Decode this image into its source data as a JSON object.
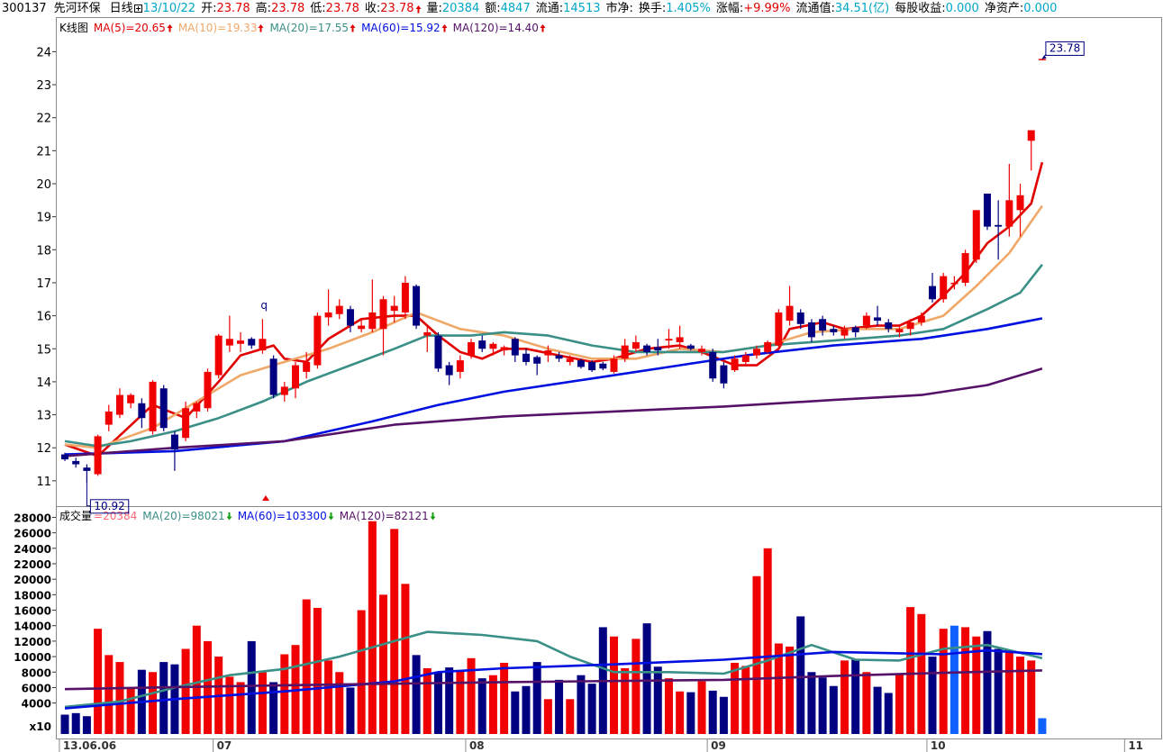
{
  "header": {
    "code": "300137",
    "name": "先河环保",
    "period": "日线",
    "date": "13/10/22",
    "fields": [
      {
        "label": "开:",
        "value": "23.78",
        "color": "#e00000"
      },
      {
        "label": "高:",
        "value": "23.78",
        "color": "#e00000"
      },
      {
        "label": "低:",
        "value": "23.78",
        "color": "#e00000"
      },
      {
        "label": "收:",
        "value": "23.78",
        "color": "#e00000",
        "arrow": "up"
      },
      {
        "label": "量:",
        "value": "20384",
        "color": "#00a6c8"
      },
      {
        "label": "额:",
        "value": "4847",
        "color": "#00a6c8"
      },
      {
        "label": "流通:",
        "value": "14513",
        "color": "#00a6c8"
      },
      {
        "label": "市净:"
      },
      {
        "label": "换手:",
        "value": "1.405%",
        "color": "#00a6c8"
      },
      {
        "label": "涨幅:",
        "value": "+9.99%",
        "color": "#e00000"
      },
      {
        "label": "流通值:",
        "value": "34.51(亿)",
        "color": "#00a6c8"
      },
      {
        "label": "每股收益:",
        "value": "0.000",
        "color": "#00a6c8"
      },
      {
        "label": "净资产:",
        "value": "0.000",
        "color": "#00a6c8"
      }
    ]
  },
  "chart_data": [
    {
      "type": "candlestick",
      "title": "K线图",
      "up_color": "#f00000",
      "down_color": "#000080",
      "flat_color": "#1060ff",
      "xlim": [
        -0.74,
        100
      ],
      "ylim": [
        10.26,
        25.02
      ],
      "yticks": [
        11,
        12,
        13,
        14,
        15,
        16,
        17,
        18,
        19,
        20,
        21,
        22,
        23,
        24
      ],
      "open": [
        11.8,
        11.6,
        11.4,
        11.2,
        12.7,
        13.0,
        13.35,
        13.35,
        12.5,
        13.8,
        12.4,
        12.3,
        13.1,
        13.2,
        14.2,
        15.1,
        15.15,
        15.3,
        14.95,
        14.7,
        13.6,
        13.8,
        14.3,
        14.5,
        15.95,
        16.05,
        16.2,
        15.6,
        15.6,
        15.6,
        16.15,
        16.1,
        16.9,
        15.4,
        15.4,
        14.5,
        14.3,
        14.8,
        15.25,
        15.0,
        14.95,
        15.3,
        14.85,
        14.75,
        14.8,
        14.8,
        14.6,
        14.65,
        14.6,
        14.55,
        14.3,
        14.7,
        15.0,
        15.1,
        15.05,
        15.25,
        15.2,
        15.1,
        14.9,
        14.9,
        14.5,
        14.35,
        14.6,
        14.8,
        14.9,
        15.1,
        15.85,
        16.1,
        15.8,
        15.9,
        15.6,
        15.4,
        15.65,
        15.7,
        15.95,
        15.8,
        15.5,
        15.6,
        15.8,
        16.9,
        16.5,
        17.0,
        17.0,
        17.7,
        19.7,
        18.75,
        18.7,
        19.2,
        21.3,
        23.78
      ],
      "high": [
        11.85,
        11.7,
        11.5,
        12.4,
        13.3,
        13.8,
        13.65,
        13.5,
        14.05,
        13.9,
        12.5,
        13.4,
        13.4,
        14.4,
        15.45,
        16.0,
        15.5,
        15.35,
        15.9,
        14.8,
        14.0,
        14.6,
        14.9,
        16.1,
        16.8,
        16.5,
        16.3,
        15.9,
        17.1,
        16.6,
        16.6,
        17.2,
        16.95,
        15.7,
        15.5,
        14.6,
        14.8,
        15.3,
        15.4,
        15.2,
        15.1,
        15.35,
        15.0,
        14.8,
        15.1,
        14.9,
        14.8,
        14.7,
        14.65,
        14.6,
        14.8,
        15.3,
        15.4,
        15.15,
        15.3,
        15.6,
        15.7,
        15.15,
        15.1,
        15.0,
        14.6,
        14.8,
        14.9,
        15.1,
        15.25,
        16.2,
        16.9,
        16.2,
        15.9,
        16.0,
        15.7,
        15.7,
        15.7,
        16.1,
        16.3,
        15.9,
        15.7,
        15.9,
        16.1,
        17.3,
        17.3,
        17.2,
        18.0,
        19.2,
        19.7,
        19.5,
        20.6,
        20.0,
        21.62,
        23.78
      ],
      "low": [
        11.6,
        11.4,
        10.92,
        11.15,
        12.5,
        12.9,
        13.2,
        12.6,
        12.4,
        12.5,
        11.3,
        12.2,
        12.9,
        13.1,
        14.1,
        14.9,
        14.9,
        15.0,
        14.85,
        13.5,
        13.4,
        13.5,
        14.1,
        14.4,
        15.7,
        15.9,
        15.5,
        15.5,
        15.5,
        14.8,
        15.8,
        15.9,
        15.6,
        14.9,
        14.3,
        13.9,
        14.1,
        14.7,
        14.9,
        14.8,
        14.8,
        14.6,
        14.5,
        14.2,
        14.6,
        14.6,
        14.5,
        14.4,
        14.3,
        14.35,
        14.25,
        14.6,
        14.9,
        14.8,
        14.8,
        15.0,
        15.0,
        14.95,
        14.8,
        14.0,
        13.8,
        14.3,
        14.5,
        14.7,
        14.85,
        15.0,
        15.7,
        15.6,
        15.2,
        15.4,
        15.4,
        15.3,
        15.35,
        15.6,
        15.7,
        15.5,
        15.35,
        15.4,
        15.7,
        16.4,
        16.4,
        16.8,
        16.9,
        17.6,
        18.6,
        17.7,
        18.4,
        18.4,
        20.4,
        23.78
      ],
      "close": [
        11.65,
        11.5,
        11.3,
        12.35,
        13.1,
        13.6,
        13.6,
        12.9,
        14.0,
        12.6,
        11.95,
        13.2,
        13.35,
        14.3,
        15.4,
        15.3,
        15.25,
        15.1,
        15.3,
        13.6,
        13.85,
        14.5,
        14.6,
        16.0,
        16.1,
        16.3,
        15.7,
        15.7,
        16.1,
        16.5,
        16.3,
        17.0,
        15.7,
        15.5,
        14.4,
        14.2,
        14.65,
        15.2,
        15.0,
        15.15,
        15.05,
        14.8,
        14.6,
        14.55,
        14.95,
        14.7,
        14.7,
        14.45,
        14.35,
        14.4,
        14.7,
        15.1,
        15.2,
        14.9,
        14.95,
        15.3,
        15.35,
        15.0,
        15.0,
        14.1,
        13.95,
        14.7,
        14.8,
        15.0,
        15.2,
        16.1,
        16.3,
        15.75,
        15.35,
        15.55,
        15.5,
        15.6,
        15.5,
        16.0,
        15.85,
        15.6,
        15.6,
        15.8,
        16.0,
        16.5,
        17.2,
        17.0,
        17.9,
        19.2,
        18.7,
        18.7,
        19.5,
        19.65,
        21.62,
        23.78
      ],
      "series": [
        {
          "name": "MA(5)=20.65",
          "color": "#e00000",
          "trend": "up",
          "x": [
            0,
            3,
            8,
            11,
            14,
            16,
            19,
            20,
            22,
            24,
            27,
            30,
            32,
            34,
            36,
            38,
            40,
            42,
            45,
            48,
            50,
            53,
            56,
            58,
            61,
            63,
            65,
            66,
            69,
            71,
            74,
            76,
            78,
            80,
            82,
            84,
            86,
            88,
            89
          ],
          "values": [
            12.1,
            11.75,
            13.3,
            12.9,
            14.0,
            14.8,
            15.1,
            14.7,
            14.6,
            15.3,
            15.9,
            16.0,
            16.0,
            15.4,
            14.9,
            14.7,
            15.0,
            15.0,
            14.8,
            14.6,
            14.7,
            15.0,
            15.1,
            14.9,
            14.5,
            14.5,
            15.0,
            15.6,
            15.8,
            15.6,
            15.7,
            15.7,
            16.0,
            16.6,
            17.3,
            18.2,
            18.7,
            19.4,
            20.65
          ]
        },
        {
          "name": "MA(10)=19.33",
          "color": "#f0a868",
          "trend": "up",
          "x": [
            0,
            3,
            8,
            12,
            16,
            20,
            24,
            28,
            32,
            36,
            40,
            44,
            48,
            52,
            56,
            60,
            64,
            68,
            72,
            76,
            80,
            83,
            86,
            89
          ],
          "values": [
            12.1,
            12.0,
            12.6,
            13.4,
            14.2,
            14.6,
            15.0,
            15.5,
            16.1,
            15.6,
            15.4,
            15.0,
            14.7,
            14.7,
            15.0,
            14.9,
            15.1,
            15.5,
            15.6,
            15.6,
            16.0,
            16.9,
            17.9,
            19.33
          ]
        },
        {
          "name": "MA(20)=17.55",
          "color": "#3a8f86",
          "trend": "up",
          "x": [
            0,
            3,
            6,
            10,
            14,
            18,
            22,
            26,
            30,
            33,
            37,
            40,
            44,
            48,
            52,
            56,
            60,
            64,
            68,
            72,
            76,
            80,
            84,
            87,
            89
          ],
          "values": [
            12.2,
            12.05,
            12.2,
            12.5,
            12.9,
            13.4,
            14.0,
            14.5,
            15.0,
            15.4,
            15.4,
            15.5,
            15.4,
            15.1,
            14.9,
            14.9,
            14.9,
            15.1,
            15.2,
            15.3,
            15.4,
            15.6,
            16.2,
            16.7,
            17.55
          ]
        },
        {
          "name": "MA(60)=15.92",
          "color": "#0010e0",
          "trend": "up",
          "x": [
            0,
            10,
            20,
            28,
            34,
            40,
            48,
            56,
            62,
            70,
            78,
            84,
            89
          ],
          "values": [
            11.8,
            11.9,
            12.2,
            12.8,
            13.3,
            13.7,
            14.1,
            14.5,
            14.8,
            15.1,
            15.3,
            15.6,
            15.92
          ]
        },
        {
          "name": "MA(120)=14.40",
          "color": "#561268",
          "trend": "up",
          "x": [
            0,
            10,
            20,
            30,
            40,
            50,
            60,
            70,
            78,
            84,
            89
          ],
          "values": [
            11.75,
            12.0,
            12.2,
            12.7,
            12.95,
            13.1,
            13.25,
            13.45,
            13.6,
            13.9,
            14.4
          ]
        }
      ],
      "annotations": [
        {
          "text": "23.78",
          "x": 89,
          "y": 23.78,
          "boxed": true
        },
        {
          "text": "10.92",
          "x": 2,
          "y": 10.92,
          "boxed": true
        },
        {
          "text": "q",
          "x": 18,
          "y": 16.1,
          "boxed": false
        }
      ]
    },
    {
      "type": "bar",
      "title": "成交量",
      "current_label": "=20384",
      "unit_label": "x10",
      "xlim": [
        -0.74,
        100
      ],
      "ylim": [
        0,
        29100
      ],
      "yticks": [
        4000,
        6000,
        8000,
        10000,
        12000,
        14000,
        16000,
        18000,
        20000,
        22000,
        24000,
        26000,
        28000
      ],
      "xticks": [
        {
          "value": -0.5,
          "label": "13.06.06"
        },
        {
          "value": 13.5,
          "label": "07"
        },
        {
          "value": 36.5,
          "label": "08"
        },
        {
          "value": 58.5,
          "label": "09"
        },
        {
          "value": 78.5,
          "label": "10"
        },
        {
          "value": 96.5,
          "label": "11"
        }
      ],
      "values": [
        2500,
        2700,
        2300,
        13600,
        10200,
        9300,
        6000,
        8300,
        8000,
        9300,
        9000,
        11000,
        14000,
        12000,
        10000,
        7400,
        6700,
        12000,
        8000,
        6700,
        10300,
        11500,
        17400,
        16300,
        9500,
        8000,
        6000,
        16000,
        27500,
        18000,
        26500,
        19400,
        10200,
        8500,
        8000,
        8600,
        8200,
        9800,
        7200,
        7600,
        9200,
        5500,
        6200,
        9300,
        4500,
        7000,
        4500,
        7600,
        6500,
        13800,
        12600,
        8500,
        12300,
        14300,
        8700,
        7200,
        5500,
        5400,
        6800,
        5600,
        4800,
        9200,
        8800,
        20400,
        24000,
        11700,
        11300,
        15200,
        8000,
        7300,
        6200,
        9500,
        9600,
        8000,
        6100,
        5300,
        7700,
        16400,
        15500,
        10000,
        13600,
        14000,
        13800,
        12600,
        13300,
        11000,
        10500,
        10000,
        9500,
        2038.4
      ],
      "series": [
        {
          "name": "MA(20)=98021",
          "color": "#3a8f86",
          "trend": "down",
          "x": [
            0,
            5,
            10,
            15,
            20,
            25,
            30,
            33,
            38,
            43,
            46,
            50,
            55,
            60,
            64,
            68,
            72,
            76,
            80,
            84,
            89
          ],
          "values": [
            3500,
            4200,
            6000,
            7600,
            8400,
            10000,
            12000,
            13200,
            12800,
            12000,
            10000,
            8000,
            8000,
            7800,
            9500,
            11500,
            9600,
            9500,
            11000,
            11500,
            9802.1
          ]
        },
        {
          "name": "MA(60)=103300",
          "color": "#0010e0",
          "trend": "down",
          "x": [
            0,
            10,
            20,
            30,
            34,
            40,
            50,
            60,
            70,
            80,
            84,
            89
          ],
          "values": [
            3300,
            4500,
            5500,
            6800,
            8000,
            8500,
            9000,
            9600,
            10600,
            10300,
            10800,
            10330
          ]
        },
        {
          "name": "MA(120)=82121",
          "color": "#561268",
          "trend": "down",
          "x": [
            0,
            20,
            40,
            60,
            70,
            80,
            89
          ],
          "values": [
            5800,
            6300,
            6700,
            7000,
            7500,
            7900,
            8212.1
          ]
        }
      ]
    }
  ]
}
